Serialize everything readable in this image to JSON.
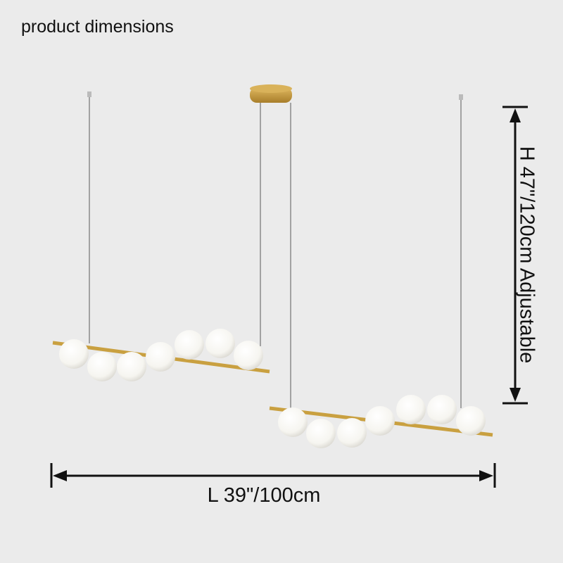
{
  "title": "product dimensions",
  "dimensions": {
    "length": "L 39\"/100cm",
    "height": "H 47\"/120cm Adjustable"
  },
  "colors": {
    "background": "#ebebeb",
    "gold": "#c9a040",
    "globe": "#fbfbf8",
    "arrow": "#111111"
  }
}
